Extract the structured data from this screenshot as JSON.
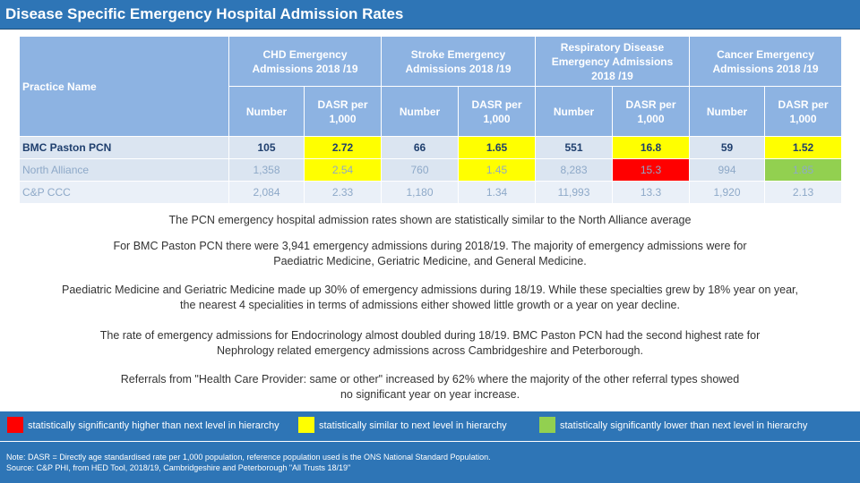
{
  "title": "Disease Specific Emergency Hospital Admission Rates",
  "table": {
    "practice_header": "Practice Name",
    "groups": [
      {
        "line1": "CHD Emergency",
        "line2": "Admissions 2018 /19",
        "line3": ""
      },
      {
        "line1": "Stroke Emergency",
        "line2": "Admissions 2018 /19",
        "line3": ""
      },
      {
        "line1": "Respiratory Disease",
        "line2": "Emergency Admissions",
        "line3": "2018 /19"
      },
      {
        "line1": "Cancer Emergency",
        "line2": "Admissions 2018 /19",
        "line3": ""
      }
    ],
    "sub_number": "Number",
    "sub_dasr_line1": "DASR per",
    "sub_dasr_line2": "1,000",
    "rows": [
      {
        "name": "BMC Paston PCN",
        "cells": [
          "105",
          "2.72",
          "66",
          "1.65",
          "551",
          "16.8",
          "59",
          "1.52"
        ]
      },
      {
        "name": "North Alliance",
        "cells": [
          "1,358",
          "2.54",
          "760",
          "1.45",
          "8,283",
          "15.3",
          "994",
          "1.85"
        ]
      },
      {
        "name": "C&P CCC",
        "cells": [
          "2,084",
          "2.33",
          "1,180",
          "1.34",
          "11,993",
          "13.3",
          "1,920",
          "2.13"
        ]
      }
    ]
  },
  "colors": {
    "header_bar": "#2e75b6",
    "table_header": "#8db3e2",
    "significantly_higher": "#ff0000",
    "similar": "#ffff00",
    "significantly_lower": "#92d050"
  },
  "paragraphs": {
    "p1": "The PCN emergency hospital admission rates shown are statistically similar to the North Alliance average",
    "p2_line1": "For BMC Paston PCN there were 3,941 emergency admissions during 2018/19. The majority of emergency admissions were for",
    "p2_line2": "Paediatric Medicine, Geriatric Medicine, and General Medicine.",
    "p3_line1": "Paediatric Medicine and Geriatric Medicine made up 30% of emergency admissions during 18/19. While these specialties grew by 18% year on year,",
    "p3_line2": "the nearest 4 specialities in terms of admissions either showed little growth or a year on year decline.",
    "p4_line1": "The rate of emergency admissions for Endocrinology almost doubled during 18/19. BMC Paston PCN had the second highest rate for",
    "p4_line2": "Nephrology related emergency admissions across Cambridgeshire and Peterborough.",
    "p5_line1": "Referrals from \"Health Care Provider: same or other\" increased by 62% where the majority of the other referral types showed",
    "p5_line2": "no significant year on year increase."
  },
  "legend": {
    "higher": "statistically significantly higher than next level in hierarchy",
    "similar": "statistically similar to next level in hierarchy",
    "lower": "statistically significantly lower than next level in hierarchy"
  },
  "notes": {
    "note": "Note: DASR = Directly age standardised rate per 1,000 population, reference population used is the ONS National Standard Population.",
    "source": "Source: C&P PHI, from HED Tool, 2018/19, Cambridgeshire and Peterborough \"All Trusts 18/19\""
  }
}
